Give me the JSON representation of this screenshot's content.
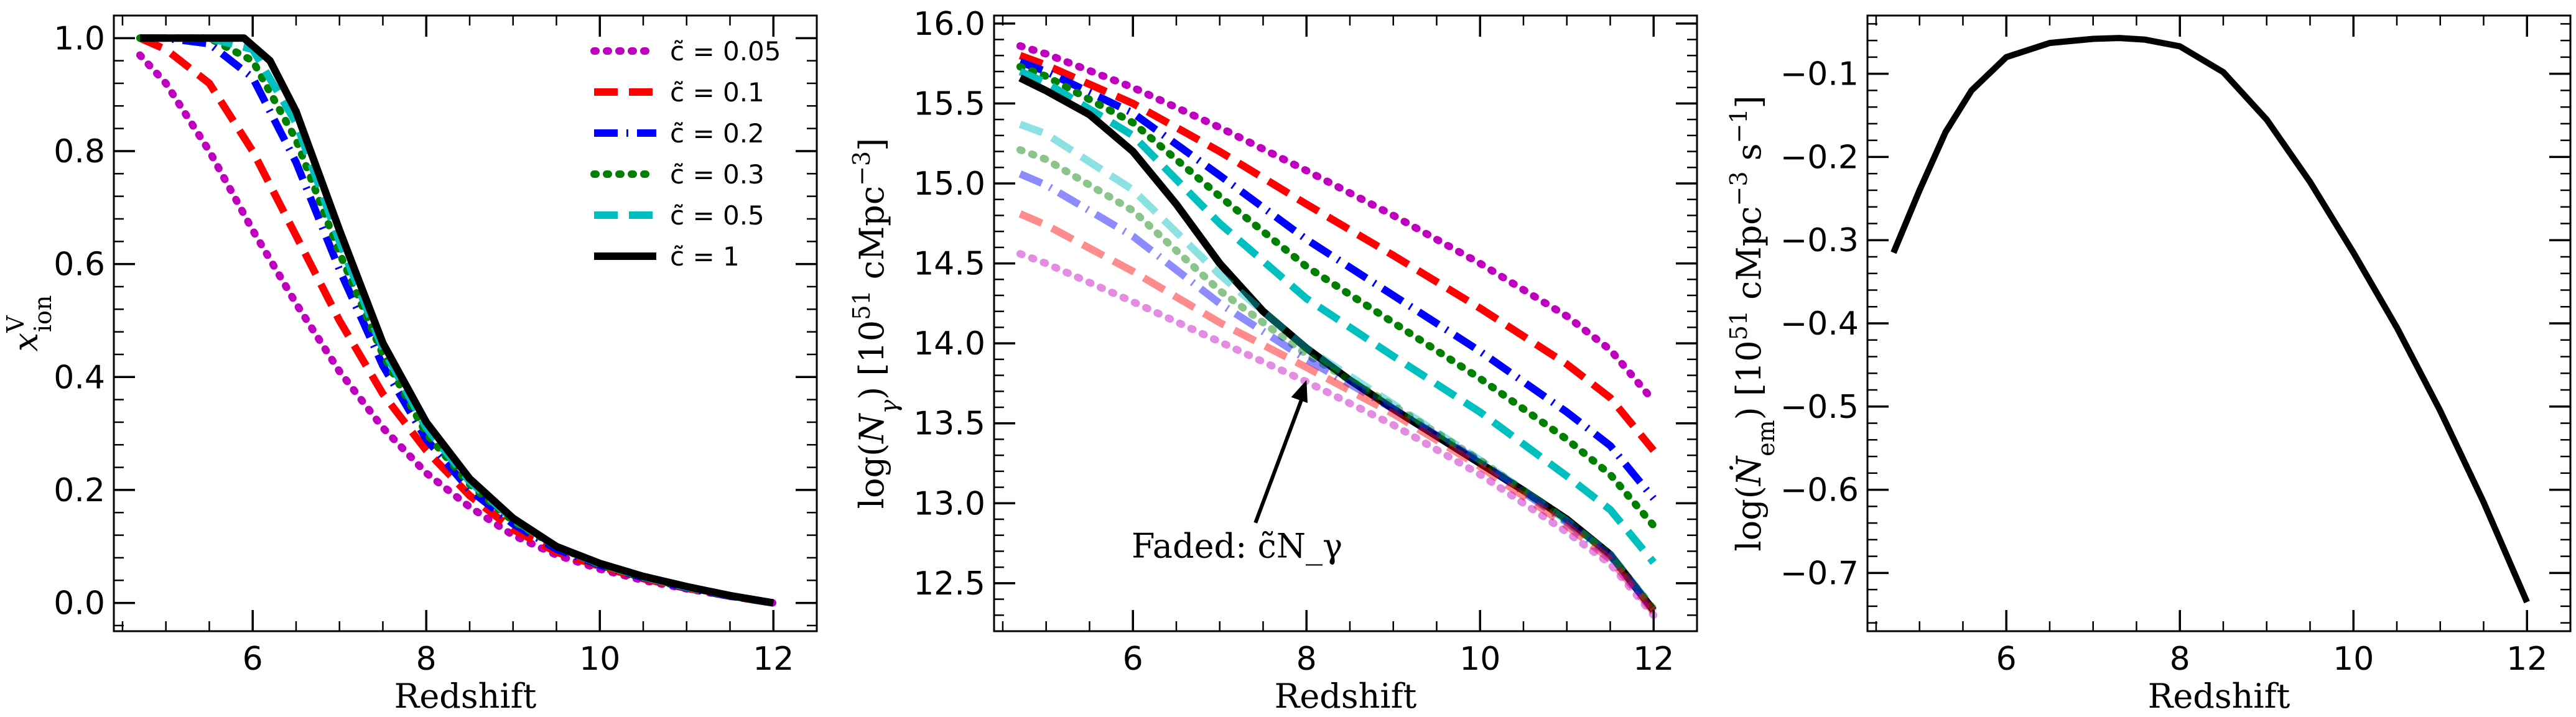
{
  "chart_data": [
    {
      "type": "line",
      "panel": "left",
      "xlabel": "Redshift",
      "ylabel": "x_ion^V",
      "xlim": [
        4.4,
        12.5
      ],
      "ylim": [
        -0.05,
        1.04
      ],
      "xticks": [
        6,
        8,
        10,
        12
      ],
      "yticks": [
        0.0,
        0.2,
        0.4,
        0.6,
        0.8,
        1.0
      ],
      "ytick_labels": [
        "0.0",
        "0.2",
        "0.4",
        "0.6",
        "0.8",
        "1.0"
      ],
      "legend": {
        "position": "top-right"
      },
      "series": [
        {
          "name": "c̃ = 0.05",
          "legend_label": "c̃ = 0.05",
          "color": "#bf00bf",
          "style": "dotted",
          "x": [
            4.7,
            5.0,
            5.5,
            6.0,
            6.5,
            7.0,
            7.5,
            8.0,
            8.5,
            9.0,
            9.5,
            10.0,
            10.5,
            11.0,
            11.5,
            12.0
          ],
          "y": [
            0.97,
            0.92,
            0.8,
            0.66,
            0.53,
            0.41,
            0.31,
            0.23,
            0.17,
            0.12,
            0.085,
            0.06,
            0.04,
            0.025,
            0.012,
            0.0
          ]
        },
        {
          "name": "c̃ = 0.1",
          "legend_label": "c̃ = 0.1",
          "color": "#ff0000",
          "style": "dashed",
          "x": [
            4.7,
            5.0,
            5.5,
            6.0,
            6.5,
            7.0,
            7.5,
            8.0,
            8.5,
            9.0,
            9.5,
            10.0,
            10.5,
            11.0,
            11.5,
            12.0
          ],
          "y": [
            1.0,
            0.98,
            0.92,
            0.8,
            0.65,
            0.5,
            0.37,
            0.27,
            0.19,
            0.13,
            0.09,
            0.065,
            0.043,
            0.026,
            0.012,
            0.0
          ]
        },
        {
          "name": "c̃ = 0.2",
          "legend_label": "c̃ = 0.2",
          "color": "#0000ff",
          "style": "dashdot",
          "x": [
            4.7,
            5.0,
            5.5,
            6.0,
            6.5,
            7.0,
            7.5,
            8.0,
            8.5,
            9.0,
            9.5,
            10.0,
            10.5,
            11.0,
            11.5,
            12.0
          ],
          "y": [
            1.0,
            1.0,
            0.99,
            0.93,
            0.78,
            0.59,
            0.42,
            0.29,
            0.2,
            0.14,
            0.095,
            0.067,
            0.045,
            0.027,
            0.012,
            0.0
          ]
        },
        {
          "name": "c̃ = 0.3",
          "legend_label": "c̃ = 0.3",
          "color": "#007f00",
          "style": "dotted",
          "x": [
            4.7,
            5.0,
            5.5,
            6.0,
            6.5,
            7.0,
            7.5,
            8.0,
            8.5,
            9.0,
            9.5,
            10.0,
            10.5,
            11.0,
            11.5,
            12.0
          ],
          "y": [
            1.0,
            1.0,
            1.0,
            0.96,
            0.82,
            0.62,
            0.44,
            0.3,
            0.21,
            0.145,
            0.1,
            0.068,
            0.046,
            0.028,
            0.013,
            0.0
          ]
        },
        {
          "name": "c̃ = 0.5",
          "legend_label": "c̃ = 0.5",
          "color": "#00bfbf",
          "style": "dashed",
          "x": [
            4.7,
            5.0,
            5.5,
            6.0,
            6.5,
            7.0,
            7.5,
            8.0,
            8.5,
            9.0,
            9.5,
            10.0,
            10.5,
            11.0,
            11.5,
            12.0
          ],
          "y": [
            1.0,
            1.0,
            1.0,
            0.98,
            0.85,
            0.64,
            0.45,
            0.31,
            0.215,
            0.148,
            0.1,
            0.069,
            0.046,
            0.028,
            0.013,
            0.0
          ]
        },
        {
          "name": "c̃ = 1",
          "legend_label": "c̃ = 1",
          "color": "#000000",
          "style": "solid",
          "x": [
            4.7,
            5.0,
            5.5,
            5.9,
            6.2,
            6.5,
            7.0,
            7.5,
            8.0,
            8.5,
            9.0,
            9.5,
            10.0,
            10.5,
            11.0,
            11.5,
            12.0
          ],
          "y": [
            1.0,
            1.0,
            1.0,
            1.0,
            0.96,
            0.87,
            0.66,
            0.46,
            0.32,
            0.22,
            0.15,
            0.1,
            0.07,
            0.047,
            0.029,
            0.013,
            0.0
          ]
        }
      ]
    },
    {
      "type": "line",
      "panel": "middle",
      "xlabel": "Redshift",
      "ylabel": "log(N_γ) [10^51 cMpc^-3]",
      "xlim": [
        4.4,
        12.5
      ],
      "ylim": [
        12.2,
        16.05
      ],
      "xticks": [
        6,
        8,
        10,
        12
      ],
      "yticks": [
        12.5,
        13.0,
        13.5,
        14.0,
        14.5,
        15.0,
        15.5,
        16.0
      ],
      "ytick_labels": [
        "12.5",
        "13.0",
        "13.5",
        "14.0",
        "14.5",
        "15.0",
        "15.5",
        "16.0"
      ],
      "annotation": {
        "text": "Faded: c̃N_γ",
        "arrow_to": [
          8.0,
          13.77
        ],
        "text_at": [
          7.2,
          12.8
        ]
      },
      "series": [
        {
          "name": "c̃ = 0.05",
          "color": "#bf00bf",
          "style": "dotted",
          "opacity": 1,
          "x": [
            4.7,
            5.0,
            6.0,
            7.0,
            8.0,
            9.0,
            10.0,
            11.0,
            11.5,
            12.0
          ],
          "y": [
            15.86,
            15.81,
            15.6,
            15.35,
            15.08,
            14.8,
            14.5,
            14.17,
            13.96,
            13.64
          ]
        },
        {
          "name": "c̃ = 0.1",
          "color": "#ff0000",
          "style": "dashed",
          "opacity": 1,
          "x": [
            4.7,
            5.0,
            6.0,
            7.0,
            8.0,
            9.0,
            10.0,
            11.0,
            11.5,
            12.0
          ],
          "y": [
            15.8,
            15.74,
            15.5,
            15.2,
            14.87,
            14.55,
            14.22,
            13.87,
            13.66,
            13.33
          ]
        },
        {
          "name": "c̃ = 0.2",
          "color": "#0000ff",
          "style": "dashdot",
          "opacity": 1,
          "x": [
            4.7,
            5.0,
            6.0,
            7.0,
            8.0,
            9.0,
            10.0,
            11.0,
            11.5,
            12.0
          ],
          "y": [
            15.76,
            15.7,
            15.44,
            15.05,
            14.65,
            14.3,
            13.95,
            13.57,
            13.36,
            13.03
          ]
        },
        {
          "name": "c̃ = 0.3",
          "color": "#007f00",
          "style": "dotted",
          "opacity": 1,
          "x": [
            4.7,
            5.0,
            6.0,
            7.0,
            8.0,
            9.0,
            10.0,
            11.0,
            11.5,
            12.0
          ],
          "y": [
            15.73,
            15.67,
            15.38,
            14.92,
            14.48,
            14.13,
            13.78,
            13.4,
            13.18,
            12.86
          ]
        },
        {
          "name": "c̃ = 0.5",
          "color": "#00bfbf",
          "style": "dashed",
          "opacity": 1,
          "x": [
            4.7,
            5.0,
            6.0,
            7.0,
            8.0,
            9.0,
            10.0,
            11.0,
            11.5,
            12.0
          ],
          "y": [
            15.7,
            15.63,
            15.3,
            14.75,
            14.28,
            13.92,
            13.57,
            13.17,
            12.96,
            12.63
          ]
        },
        {
          "name": "c̃ = 1",
          "color": "#000000",
          "style": "solid",
          "opacity": 1,
          "x": [
            4.7,
            5.0,
            5.5,
            6.0,
            6.5,
            7.0,
            7.5,
            8.0,
            8.5,
            9.0,
            9.5,
            10.0,
            10.5,
            11.0,
            11.5,
            12.0
          ],
          "y": [
            15.66,
            15.58,
            15.43,
            15.2,
            14.87,
            14.5,
            14.2,
            13.97,
            13.77,
            13.59,
            13.42,
            13.25,
            13.08,
            12.9,
            12.68,
            12.33
          ]
        },
        {
          "name": "faded c̃ = 0.5",
          "color": "#00bfbf",
          "style": "dashed",
          "opacity": 0.45,
          "x": [
            4.7,
            5.0,
            6.0,
            7.0,
            8.0,
            9.0,
            10.0,
            11.0,
            11.5,
            12.0
          ],
          "y": [
            15.37,
            15.31,
            14.96,
            14.43,
            13.97,
            13.62,
            13.27,
            12.89,
            12.68,
            12.34
          ]
        },
        {
          "name": "faded c̃ = 0.3",
          "color": "#007f00",
          "style": "dotted",
          "opacity": 0.45,
          "x": [
            4.7,
            5.0,
            6.0,
            7.0,
            8.0,
            9.0,
            10.0,
            11.0,
            11.5,
            12.0
          ],
          "y": [
            15.21,
            15.15,
            14.83,
            14.33,
            13.93,
            13.61,
            13.27,
            12.89,
            12.68,
            12.34
          ]
        },
        {
          "name": "faded c̃ = 0.2",
          "color": "#0000ff",
          "style": "dashdot",
          "opacity": 0.45,
          "x": [
            4.7,
            5.0,
            6.0,
            7.0,
            8.0,
            9.0,
            10.0,
            11.0,
            11.5,
            12.0
          ],
          "y": [
            15.06,
            14.99,
            14.67,
            14.25,
            13.9,
            13.59,
            13.26,
            12.88,
            12.67,
            12.33
          ]
        },
        {
          "name": "faded c̃ = 0.1",
          "color": "#ff0000",
          "style": "dashed",
          "opacity": 0.45,
          "x": [
            4.7,
            5.0,
            6.0,
            7.0,
            8.0,
            9.0,
            10.0,
            11.0,
            11.5,
            12.0
          ],
          "y": [
            14.81,
            14.74,
            14.45,
            14.13,
            13.85,
            13.56,
            13.23,
            12.86,
            12.65,
            12.32
          ]
        },
        {
          "name": "faded c̃ = 0.05",
          "color": "#bf00bf",
          "style": "dotted",
          "opacity": 0.45,
          "x": [
            4.7,
            5.0,
            6.0,
            7.0,
            8.0,
            9.0,
            10.0,
            11.0,
            11.5,
            12.0
          ],
          "y": [
            14.56,
            14.5,
            14.26,
            14.01,
            13.76,
            13.49,
            13.18,
            12.82,
            12.62,
            12.3
          ]
        }
      ]
    },
    {
      "type": "line",
      "panel": "right",
      "xlabel": "Redshift",
      "ylabel": "log(Ṅ_em) [10^51 cMpc^-3 s^-1]",
      "xlim": [
        4.4,
        12.5
      ],
      "ylim": [
        -0.77,
        -0.03
      ],
      "xticks": [
        6,
        8,
        10,
        12
      ],
      "yticks": [
        -0.7,
        -0.6,
        -0.5,
        -0.4,
        -0.3,
        -0.2,
        -0.1
      ],
      "ytick_labels": [
        "−0.7",
        "−0.6",
        "−0.5",
        "−0.4",
        "−0.3",
        "−0.2",
        "−0.1"
      ],
      "series": [
        {
          "name": "c̃ = 1",
          "color": "#000000",
          "style": "solid",
          "opacity": 1,
          "x": [
            4.7,
            5.0,
            5.3,
            5.6,
            6.0,
            6.5,
            7.0,
            7.3,
            7.6,
            8.0,
            8.5,
            9.0,
            9.5,
            10.0,
            10.5,
            11.0,
            11.5,
            12.0
          ],
          "y": [
            -0.315,
            -0.24,
            -0.17,
            -0.12,
            -0.08,
            -0.063,
            -0.058,
            -0.057,
            -0.059,
            -0.067,
            -0.098,
            -0.155,
            -0.23,
            -0.315,
            -0.405,
            -0.505,
            -0.615,
            -0.735
          ]
        }
      ]
    }
  ]
}
